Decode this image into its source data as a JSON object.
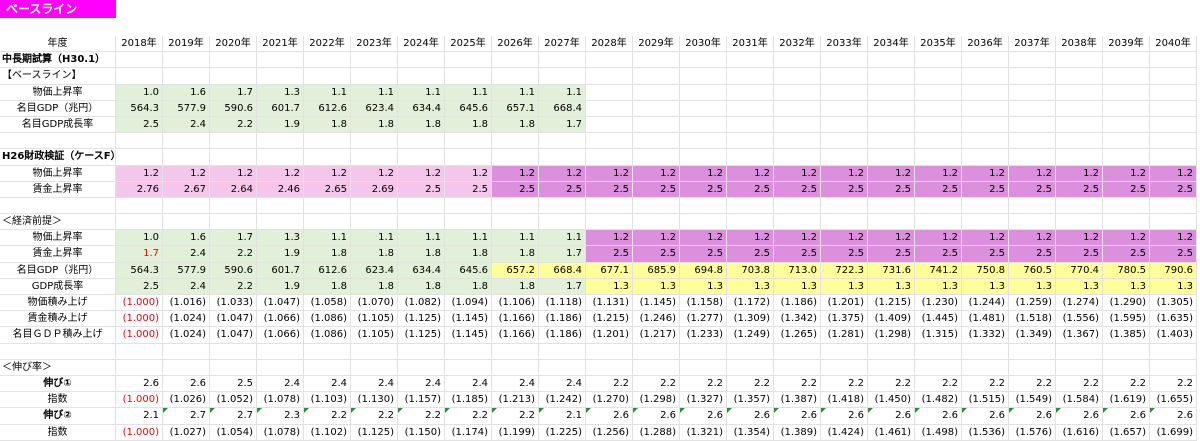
{
  "sheet_tab": "ベースライン",
  "colors": {
    "tab": "#ff00ff",
    "green": "#e2f0d9",
    "light_purple": "#f4c6ec",
    "dark_purple": "#dc8fdc",
    "yellow": "#ffff99",
    "red_text": "#ff0000"
  },
  "header": {
    "label": "年度",
    "years": [
      "2018年",
      "2019年",
      "2020年",
      "2021年",
      "2022年",
      "2023年",
      "2024年",
      "2025年",
      "2026年",
      "2027年",
      "2028年",
      "2029年",
      "2030年",
      "2031年",
      "2032年",
      "2033年",
      "2034年",
      "2035年",
      "2036年",
      "2037年",
      "2038年",
      "2039年",
      "2040年"
    ]
  },
  "rows": [
    {
      "label": "中長期試算（H30.1）",
      "style": "bold",
      "values": []
    },
    {
      "label": "【ベースライン】",
      "style": "plain",
      "values": []
    },
    {
      "label": "物価上昇率",
      "style": "center",
      "values": [
        "1.0",
        "1.6",
        "1.7",
        "1.3",
        "1.1",
        "1.1",
        "1.1",
        "1.1",
        "1.1",
        "1.1"
      ],
      "fills": [
        "g",
        "g",
        "g",
        "g",
        "g",
        "g",
        "g",
        "g",
        "g",
        "g"
      ]
    },
    {
      "label": "名目GDP（兆円）",
      "style": "center",
      "values": [
        "564.3",
        "577.9",
        "590.6",
        "601.7",
        "612.6",
        "623.4",
        "634.4",
        "645.6",
        "657.1",
        "668.4"
      ],
      "fills": [
        "g",
        "g",
        "g",
        "g",
        "g",
        "g",
        "g",
        "g",
        "g",
        "g"
      ]
    },
    {
      "label": "名目GDP成長率",
      "style": "center",
      "values": [
        "2.5",
        "2.4",
        "2.2",
        "1.9",
        "1.8",
        "1.8",
        "1.8",
        "1.8",
        "1.8",
        "1.7"
      ],
      "fills": [
        "g",
        "g",
        "g",
        "g",
        "g",
        "g",
        "g",
        "g",
        "g",
        "g"
      ]
    },
    {
      "label": "",
      "style": "plain",
      "values": []
    },
    {
      "label": "H26財政検証（ケースF）",
      "style": "bold",
      "values": []
    },
    {
      "label": "物価上昇率",
      "style": "center",
      "values": [
        "1.2",
        "1.2",
        "1.2",
        "1.2",
        "1.2",
        "1.2",
        "1.2",
        "1.2",
        "1.2",
        "1.2",
        "1.2",
        "1.2",
        "1.2",
        "1.2",
        "1.2",
        "1.2",
        "1.2",
        "1.2",
        "1.2",
        "1.2",
        "1.2",
        "1.2",
        "1.2"
      ],
      "fills": [
        "lp",
        "lp",
        "lp",
        "lp",
        "lp",
        "lp",
        "lp",
        "lp",
        "dp",
        "dp",
        "dp",
        "dp",
        "dp",
        "dp",
        "dp",
        "dp",
        "dp",
        "dp",
        "dp",
        "dp",
        "dp",
        "dp",
        "dp"
      ]
    },
    {
      "label": "賃金上昇率",
      "style": "center",
      "values": [
        "2.76",
        "2.67",
        "2.64",
        "2.46",
        "2.65",
        "2.69",
        "2.5",
        "2.5",
        "2.5",
        "2.5",
        "2.5",
        "2.5",
        "2.5",
        "2.5",
        "2.5",
        "2.5",
        "2.5",
        "2.5",
        "2.5",
        "2.5",
        "2.5",
        "2.5",
        "2.5"
      ],
      "fills": [
        "lp",
        "lp",
        "lp",
        "lp",
        "lp",
        "lp",
        "lp",
        "lp",
        "dp",
        "dp",
        "dp",
        "dp",
        "dp",
        "dp",
        "dp",
        "dp",
        "dp",
        "dp",
        "dp",
        "dp",
        "dp",
        "dp",
        "dp"
      ]
    },
    {
      "label": "",
      "style": "plain",
      "values": []
    },
    {
      "label": "＜経済前提＞",
      "style": "plain",
      "values": []
    },
    {
      "label": "物価上昇率",
      "style": "center",
      "values": [
        "1.0",
        "1.6",
        "1.7",
        "1.3",
        "1.1",
        "1.1",
        "1.1",
        "1.1",
        "1.1",
        "1.1",
        "1.2",
        "1.2",
        "1.2",
        "1.2",
        "1.2",
        "1.2",
        "1.2",
        "1.2",
        "1.2",
        "1.2",
        "1.2",
        "1.2",
        "1.2"
      ],
      "fills": [
        "g",
        "g",
        "g",
        "g",
        "g",
        "g",
        "g",
        "g",
        "g",
        "g",
        "dp",
        "dp",
        "dp",
        "dp",
        "dp",
        "dp",
        "dp",
        "dp",
        "dp",
        "dp",
        "dp",
        "dp",
        "dp"
      ]
    },
    {
      "label": "賃金上昇率",
      "style": "center",
      "values": [
        "1.7",
        "2.4",
        "2.2",
        "1.9",
        "1.8",
        "1.8",
        "1.8",
        "1.8",
        "1.8",
        "1.7",
        "2.5",
        "2.5",
        "2.5",
        "2.5",
        "2.5",
        "2.5",
        "2.5",
        "2.5",
        "2.5",
        "2.5",
        "2.5",
        "2.5",
        "2.5"
      ],
      "fills": [
        "g",
        "g",
        "g",
        "g",
        "g",
        "g",
        "g",
        "g",
        "g",
        "g",
        "dp",
        "dp",
        "dp",
        "dp",
        "dp",
        "dp",
        "dp",
        "dp",
        "dp",
        "dp",
        "dp",
        "dp",
        "dp"
      ],
      "red": [
        0
      ]
    },
    {
      "label": "名目GDP（兆円）",
      "style": "center",
      "values": [
        "564.3",
        "577.9",
        "590.6",
        "601.7",
        "612.6",
        "623.4",
        "634.4",
        "645.6",
        "657.2",
        "668.4",
        "677.1",
        "685.9",
        "694.8",
        "703.8",
        "713.0",
        "722.3",
        "731.6",
        "741.2",
        "750.8",
        "760.5",
        "770.4",
        "780.5",
        "790.6"
      ],
      "fills": [
        "g",
        "g",
        "g",
        "g",
        "g",
        "g",
        "g",
        "g",
        "y",
        "y",
        "y",
        "y",
        "y",
        "y",
        "y",
        "y",
        "y",
        "y",
        "y",
        "y",
        "y",
        "y",
        "y"
      ]
    },
    {
      "label": "GDP成長率",
      "style": "center",
      "values": [
        "2.5",
        "2.4",
        "2.2",
        "1.9",
        "1.8",
        "1.8",
        "1.8",
        "1.8",
        "1.8",
        "1.7",
        "1.3",
        "1.3",
        "1.3",
        "1.3",
        "1.3",
        "1.3",
        "1.3",
        "1.3",
        "1.3",
        "1.3",
        "1.3",
        "1.3",
        "1.3"
      ],
      "fills": [
        "g",
        "g",
        "g",
        "g",
        "g",
        "g",
        "g",
        "g",
        "g",
        "g",
        "y",
        "y",
        "y",
        "y",
        "y",
        "y",
        "y",
        "y",
        "y",
        "y",
        "y",
        "y",
        "y"
      ]
    },
    {
      "label": "物価積み上げ",
      "style": "center",
      "values": [
        "(1.000)",
        "(1.016)",
        "(1.033)",
        "(1.047)",
        "(1.058)",
        "(1.070)",
        "(1.082)",
        "(1.094)",
        "(1.106)",
        "(1.118)",
        "(1.131)",
        "(1.145)",
        "(1.158)",
        "(1.172)",
        "(1.186)",
        "(1.201)",
        "(1.215)",
        "(1.230)",
        "(1.244)",
        "(1.259)",
        "(1.274)",
        "(1.290)",
        "(1.305)"
      ],
      "red": [
        0
      ]
    },
    {
      "label": "賃金積み上げ",
      "style": "center",
      "values": [
        "(1.000)",
        "(1.024)",
        "(1.047)",
        "(1.066)",
        "(1.086)",
        "(1.105)",
        "(1.125)",
        "(1.145)",
        "(1.166)",
        "(1.186)",
        "(1.215)",
        "(1.246)",
        "(1.277)",
        "(1.309)",
        "(1.342)",
        "(1.375)",
        "(1.409)",
        "(1.445)",
        "(1.481)",
        "(1.518)",
        "(1.556)",
        "(1.595)",
        "(1.635)"
      ],
      "red": [
        0
      ]
    },
    {
      "label": "名目ＧＤＰ積み上げ",
      "style": "center",
      "values": [
        "(1.000)",
        "(1.024)",
        "(1.047)",
        "(1.066)",
        "(1.086)",
        "(1.105)",
        "(1.125)",
        "(1.145)",
        "(1.166)",
        "(1.186)",
        "(1.201)",
        "(1.217)",
        "(1.233)",
        "(1.249)",
        "(1.265)",
        "(1.281)",
        "(1.298)",
        "(1.315)",
        "(1.332)",
        "(1.349)",
        "(1.367)",
        "(1.385)",
        "(1.403)"
      ],
      "red": [
        0
      ]
    },
    {
      "label": "",
      "style": "plain",
      "values": []
    },
    {
      "label": "＜伸び率＞",
      "style": "plain",
      "values": []
    },
    {
      "label": "伸び①",
      "style": "bold-center",
      "values": [
        "2.6",
        "2.6",
        "2.5",
        "2.4",
        "2.4",
        "2.4",
        "2.4",
        "2.4",
        "2.4",
        "2.4",
        "2.2",
        "2.2",
        "2.2",
        "2.2",
        "2.2",
        "2.2",
        "2.2",
        "2.2",
        "2.2",
        "2.2",
        "2.2",
        "2.2",
        "2.2"
      ]
    },
    {
      "label": "指数",
      "style": "center",
      "values": [
        "(1.000)",
        "(1.026)",
        "(1.052)",
        "(1.078)",
        "(1.103)",
        "(1.130)",
        "(1.157)",
        "(1.185)",
        "(1.213)",
        "(1.242)",
        "(1.270)",
        "(1.298)",
        "(1.327)",
        "(1.357)",
        "(1.387)",
        "(1.418)",
        "(1.450)",
        "(1.482)",
        "(1.515)",
        "(1.549)",
        "(1.584)",
        "(1.619)",
        "(1.655)"
      ],
      "red": [
        0
      ]
    },
    {
      "label": "伸び②",
      "style": "bold-center",
      "values": [
        "2.1",
        "2.7",
        "2.7",
        "2.3",
        "2.2",
        "2.2",
        "2.2",
        "2.2",
        "2.2",
        "2.1",
        "2.6",
        "2.6",
        "2.6",
        "2.6",
        "2.6",
        "2.6",
        "2.6",
        "2.6",
        "2.6",
        "2.6",
        "2.6",
        "2.6",
        "2.6"
      ],
      "marked": true
    },
    {
      "label": "指数",
      "style": "center",
      "values": [
        "(1.000)",
        "(1.027)",
        "(1.054)",
        "(1.078)",
        "(1.102)",
        "(1.125)",
        "(1.150)",
        "(1.174)",
        "(1.199)",
        "(1.225)",
        "(1.256)",
        "(1.288)",
        "(1.321)",
        "(1.354)",
        "(1.389)",
        "(1.424)",
        "(1.461)",
        "(1.498)",
        "(1.536)",
        "(1.576)",
        "(1.616)",
        "(1.657)",
        "(1.699)"
      ],
      "red": [
        0
      ]
    }
  ]
}
